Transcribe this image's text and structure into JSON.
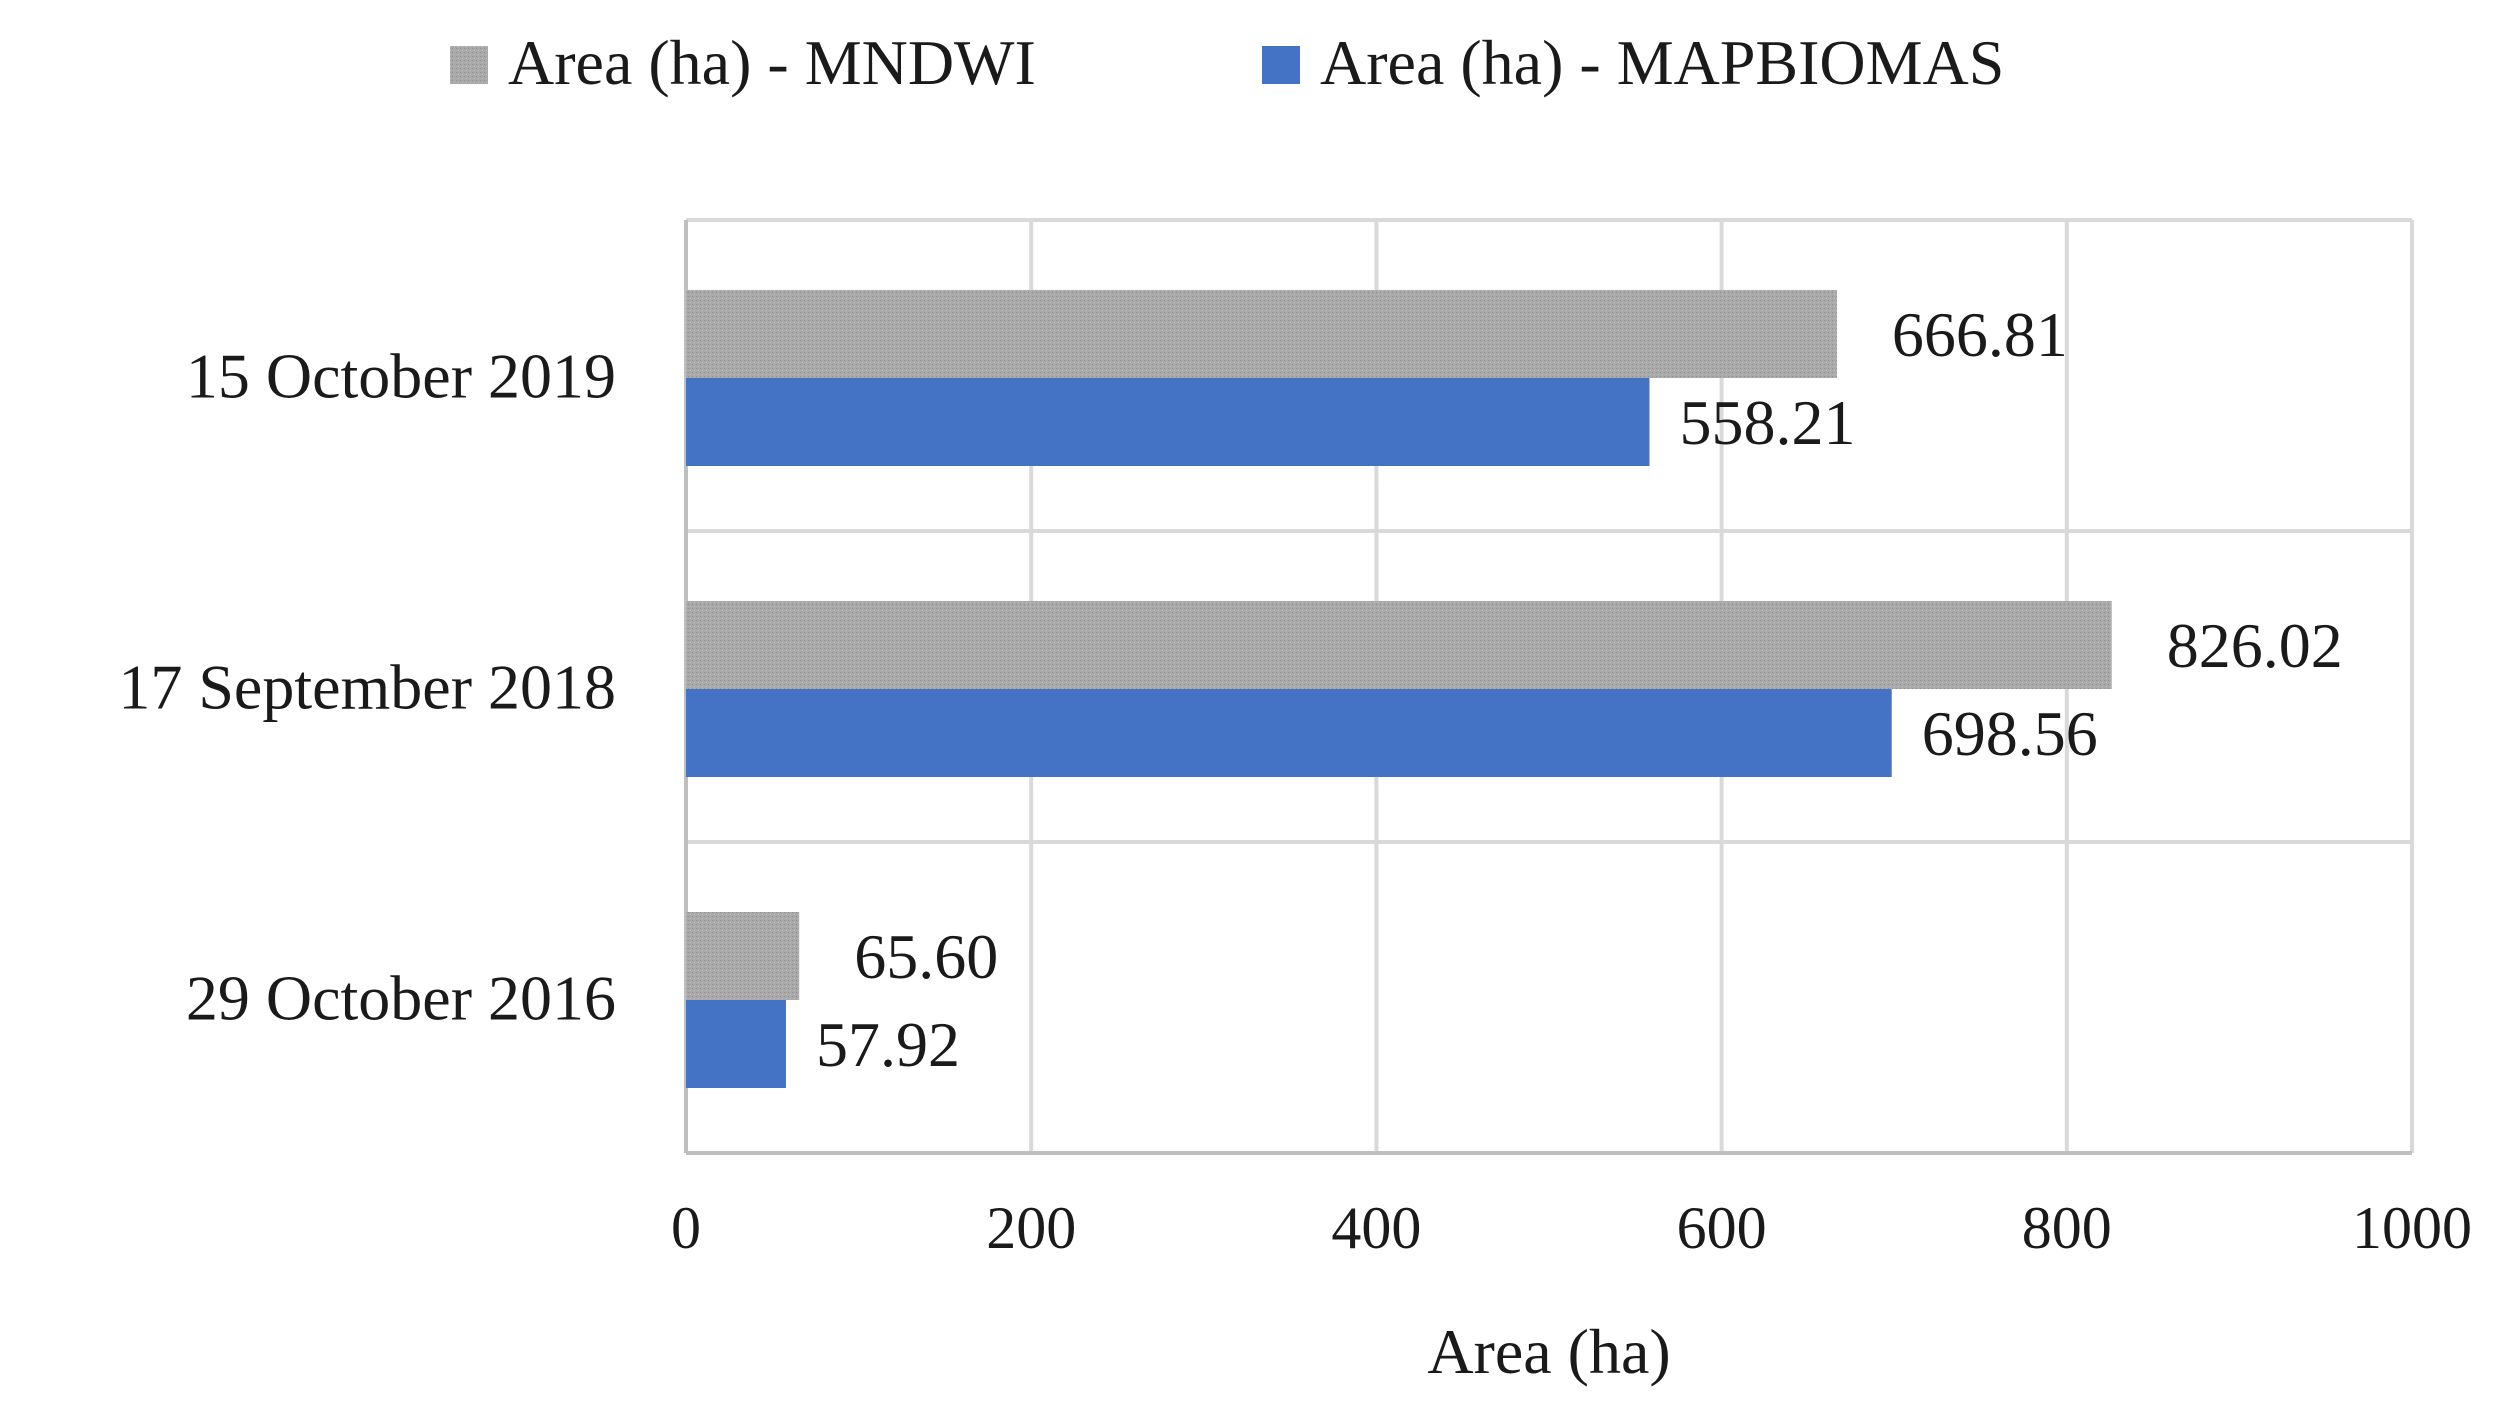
{
  "chart_data": {
    "type": "bar",
    "orientation": "horizontal",
    "title": "",
    "xlabel": "Area (ha)",
    "ylabel": "",
    "xlim": [
      0,
      1000
    ],
    "xticks": [
      0,
      200,
      400,
      600,
      800,
      1000
    ],
    "categories": [
      "15 October 2019",
      "17 September 2018",
      "29 October 2016"
    ],
    "series": [
      {
        "name": "Area (ha) - MNDWI",
        "color": "#a6a6a6",
        "values": [
          666.81,
          826.02,
          65.6
        ],
        "labels": [
          "666.81",
          "826.02",
          "65.60"
        ]
      },
      {
        "name": "Area (ha) - MAPBIOMAS",
        "color": "#4472c4",
        "values": [
          558.21,
          698.56,
          57.92
        ],
        "labels": [
          "558.21",
          "698.56",
          "57.92"
        ]
      }
    ],
    "grid": true,
    "legend_position": "top-center"
  }
}
